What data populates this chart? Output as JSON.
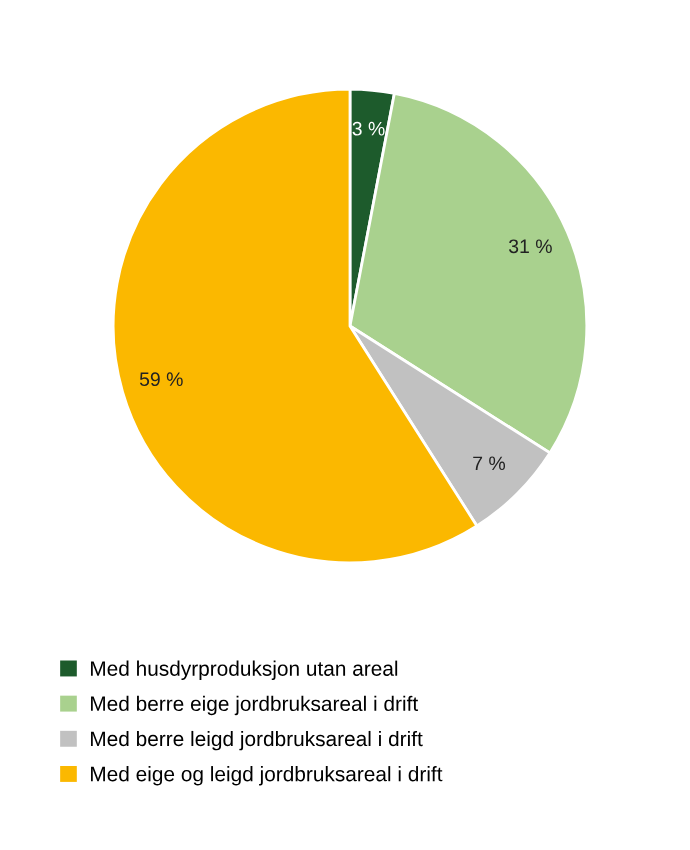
{
  "chart_data": {
    "type": "pie",
    "categories": [
      "Med husdyrproduksjon utan areal",
      "Med berre eige jordbruksareal i drift",
      "Med berre leigd jordbruksareal i drift",
      "Med eige og leigd jordbruksareal i drift"
    ],
    "values": [
      3,
      31,
      7,
      59
    ],
    "colors": [
      "#1d5b2c",
      "#a9d18e",
      "#c1c1c1",
      "#fbb800"
    ],
    "value_labels": [
      "3 %",
      "31 %",
      "7 %",
      "59 %"
    ],
    "legend": "bottom"
  }
}
